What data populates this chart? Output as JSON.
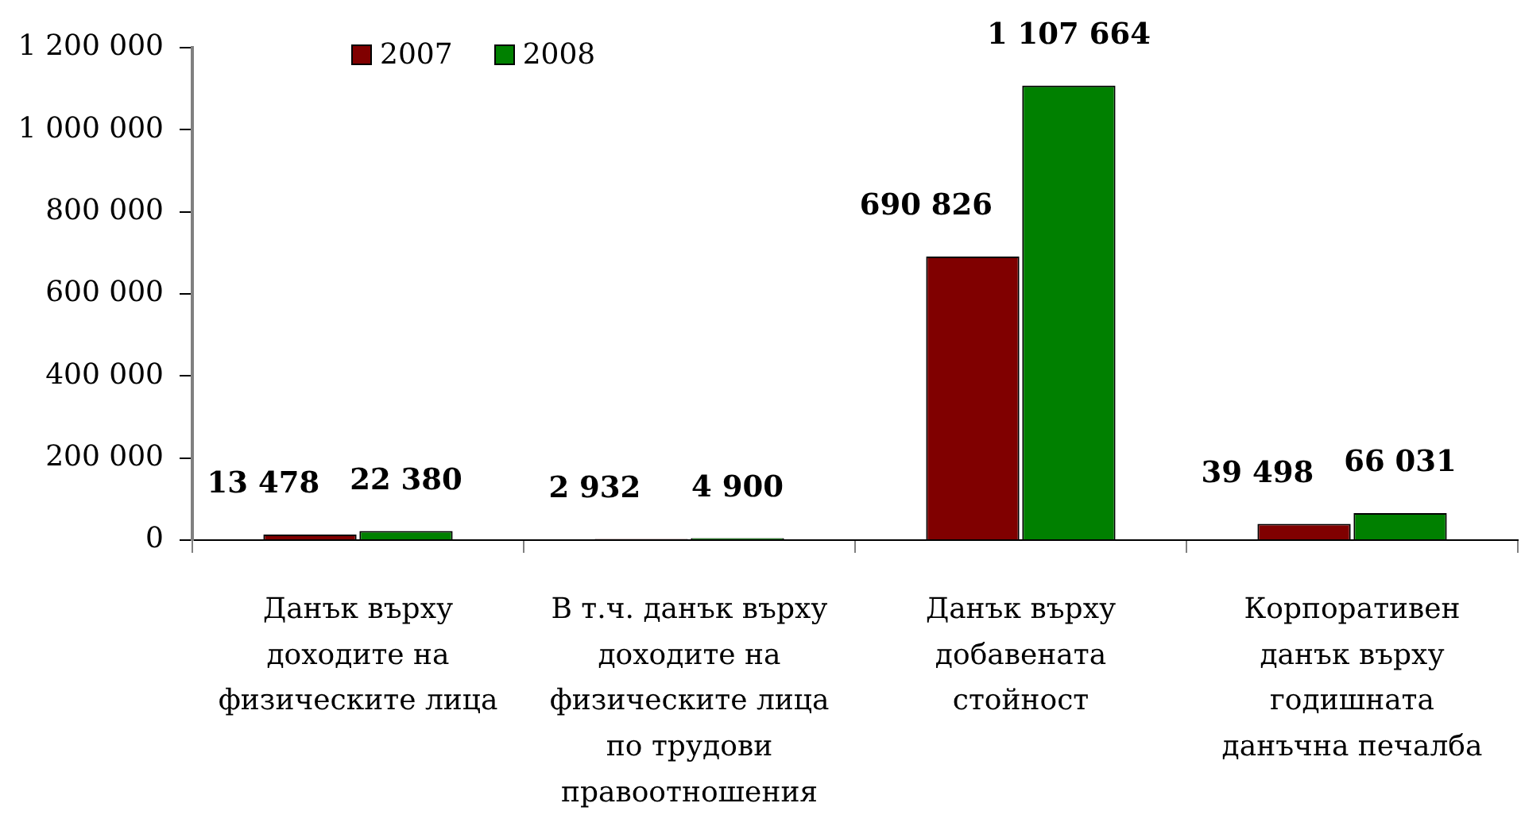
{
  "chart_data": {
    "type": "bar",
    "categories": [
      "Данък върху\nдоходите на\nфизическите лица",
      "В т.ч. данък върху\nдоходите на\nфизическите лица\nпо трудови\nправоотношения",
      "Данък върху\nдобавената\nстойност",
      "Корпоративен\nданък върху\nгодишната\nданъчна печалба"
    ],
    "series": [
      {
        "name": "2007",
        "color": "#800000",
        "values": [
          13478,
          2932,
          690826,
          39498
        ],
        "value_labels": [
          "13 478",
          "2 932",
          "690 826",
          "39 498"
        ]
      },
      {
        "name": "2008",
        "color": "#008000",
        "values": [
          22380,
          4900,
          1107664,
          66031
        ],
        "value_labels": [
          "22 380",
          "4 900",
          "1 107 664",
          "66 031"
        ]
      }
    ],
    "ylim": [
      0,
      1200000
    ],
    "yticks": [
      0,
      {
        "value": 200000,
        "label": "200 000"
      },
      {
        "value": 400000,
        "label": "400 000"
      },
      {
        "value": 600000,
        "label": "600 000"
      },
      {
        "value": 800000,
        "label": "800 000"
      },
      {
        "value": 1000000,
        "label": "1 000 000"
      },
      {
        "value": 1200000,
        "label": "1 200 000"
      }
    ],
    "legend": "top left"
  }
}
